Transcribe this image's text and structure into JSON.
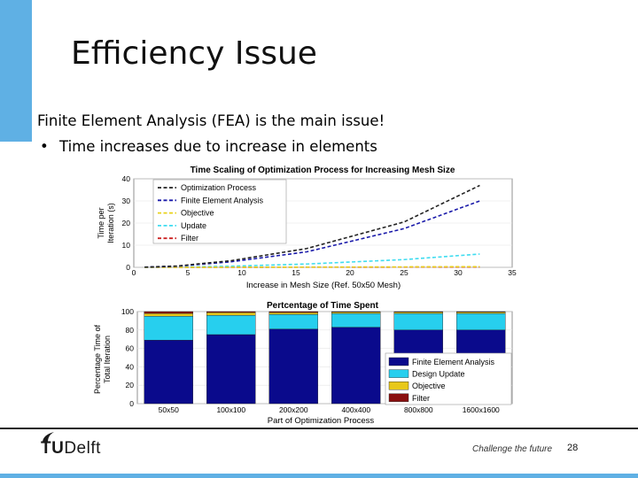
{
  "slide": {
    "title": "Efficiency Issue",
    "intro": "Finite Element Analysis (FEA) is the main issue!",
    "bullet": "Time increases due to increase in elements",
    "bullet_marker": "•",
    "footer": {
      "logo_tu": "TU",
      "logo_delft": "Delft",
      "tagline": "Challenge the future",
      "page_number": "28"
    },
    "accent_color": "#5fb0e4"
  },
  "chart_data": [
    {
      "type": "line",
      "title": "Time Scaling of Optimization Process for Increasing Mesh Size",
      "xlabel": "Increase in Mesh Size (Ref. 50x50 Mesh)",
      "ylabel_line1": "Time per",
      "ylabel_line2": "Iteration (s)",
      "xlim": [
        0,
        35
      ],
      "ylim": [
        0,
        40
      ],
      "xticks": [
        0,
        5,
        10,
        15,
        20,
        25,
        30,
        35
      ],
      "yticks": [
        0,
        10,
        20,
        30,
        40
      ],
      "legend": "top-left",
      "series": [
        {
          "name": "Optimization Process",
          "color": "#222222",
          "x": [
            1,
            4,
            9,
            16,
            25,
            32
          ],
          "y": [
            0.1,
            0.6,
            3,
            8.5,
            20.5,
            37
          ]
        },
        {
          "name": "Finite Element Analysis",
          "color": "#1a1aaa",
          "x": [
            1,
            4,
            9,
            16,
            25,
            32
          ],
          "y": [
            0.1,
            0.5,
            2.5,
            7,
            17.5,
            30
          ]
        },
        {
          "name": "Objective",
          "color": "#e8d21a",
          "x": [
            1,
            4,
            9,
            16,
            25,
            32
          ],
          "y": [
            0,
            0.02,
            0.05,
            0.1,
            0.2,
            0.3
          ]
        },
        {
          "name": "Update",
          "color": "#3fdcf0",
          "x": [
            1,
            4,
            9,
            16,
            25,
            32
          ],
          "y": [
            0,
            0.1,
            0.5,
            1.5,
            3.5,
            6
          ]
        },
        {
          "name": "Filter",
          "color": "#cc2222",
          "x": [
            1,
            4,
            9,
            16,
            25,
            32
          ],
          "y": [
            0,
            0.01,
            0.03,
            0.06,
            0.1,
            0.15
          ]
        }
      ]
    },
    {
      "type": "bar",
      "stacked": true,
      "title": "Pertcentage of Time Spent",
      "xlabel": "Part of Optimization Process",
      "ylabel_line1": "Percentage Time of",
      "ylabel_line2": "Total Iteration",
      "ylim": [
        0,
        100
      ],
      "yticks": [
        0,
        20,
        40,
        60,
        80,
        100
      ],
      "legend": "bottom-right",
      "categories": [
        "50x50",
        "100x100",
        "200x200",
        "400x400",
        "800x800",
        "1600x1600"
      ],
      "series": [
        {
          "name": "Finite Element Analysis",
          "color": "#0a0a8c",
          "values": [
            69,
            75,
            81,
            83,
            80,
            80
          ]
        },
        {
          "name": "Design Update",
          "color": "#27cfee",
          "values": [
            26,
            21,
            16,
            15,
            18,
            18
          ]
        },
        {
          "name": "Objective",
          "color": "#e8c81a",
          "values": [
            3,
            3,
            2,
            1.5,
            1.5,
            1.5
          ]
        },
        {
          "name": "Filter",
          "color": "#8a1010",
          "values": [
            2,
            1,
            1,
            0.5,
            0.5,
            0.5
          ]
        }
      ]
    }
  ]
}
